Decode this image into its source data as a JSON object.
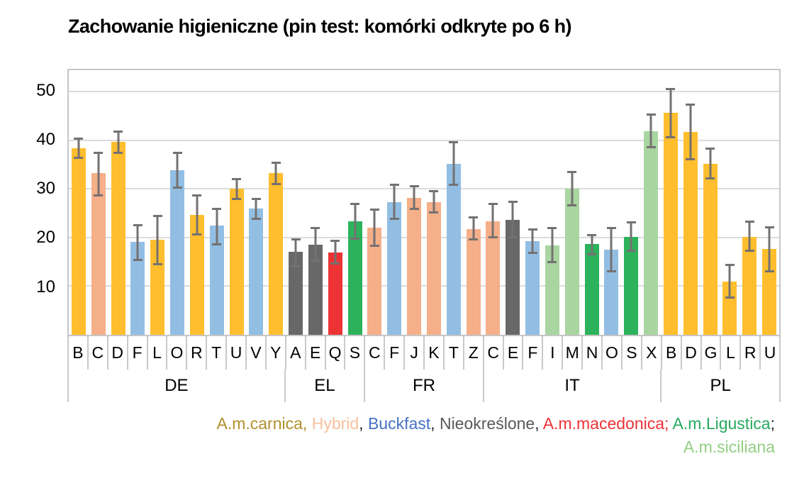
{
  "title": "Zachowanie higieniczne (pin test: komórki odkryte po 6 h)",
  "chart_data": {
    "type": "bar",
    "title": "Zachowanie higieniczne (pin test: komórki odkryte po 6 h)",
    "xlabel": "",
    "ylabel": "",
    "ylim": [
      0,
      54.4
    ],
    "yticks": [
      10,
      20,
      30,
      40,
      50
    ],
    "grid": true,
    "error_bars": true,
    "colors": {
      "A.m.carnica": "#FEBE2D",
      "Hybrid": "#F5AF89",
      "Buckfast": "#92BEE3",
      "Nieokreślone": "#686868",
      "A.m.macedonica": "#EE3335",
      "A.m.Ligustica": "#2DB25C",
      "A.m.siciliana": "#A9D5A1"
    },
    "groups": [
      {
        "label": "DE",
        "bars": [
          {
            "label": "B",
            "breed": "A.m.carnica",
            "value": 38.4,
            "err_low": 36.2,
            "err_high": 40.6
          },
          {
            "label": "C",
            "breed": "Hybrid",
            "value": 33.2,
            "err_low": 28.5,
            "err_high": 37.6
          },
          {
            "label": "D",
            "breed": "A.m.carnica",
            "value": 39.7,
            "err_low": 37.2,
            "err_high": 42.0
          },
          {
            "label": "F",
            "breed": "Buckfast",
            "value": 19.1,
            "err_low": 15.2,
            "err_high": 22.7
          },
          {
            "label": "L",
            "breed": "A.m.carnica",
            "value": 19.6,
            "err_low": 14.3,
            "err_high": 24.6
          },
          {
            "label": "O",
            "breed": "Buckfast",
            "value": 33.8,
            "err_low": 30.0,
            "err_high": 37.6
          },
          {
            "label": "R",
            "breed": "A.m.carnica",
            "value": 24.6,
            "err_low": 20.4,
            "err_high": 28.9
          },
          {
            "label": "T",
            "breed": "Buckfast",
            "value": 22.4,
            "err_low": 18.4,
            "err_high": 26.1
          },
          {
            "label": "U",
            "breed": "A.m.carnica",
            "value": 30.0,
            "err_low": 27.7,
            "err_high": 32.2
          },
          {
            "label": "V",
            "breed": "Buckfast",
            "value": 26.0,
            "err_low": 23.7,
            "err_high": 28.2
          },
          {
            "label": "Y",
            "breed": "A.m.carnica",
            "value": 33.2,
            "err_low": 30.8,
            "err_high": 35.6
          }
        ]
      },
      {
        "label": "EL",
        "bars": [
          {
            "label": "A",
            "breed": "Nieokreślone",
            "value": 17.0,
            "err_low": 13.9,
            "err_high": 19.9
          },
          {
            "label": "E",
            "breed": "Nieokreślone",
            "value": 18.5,
            "err_low": 15.0,
            "err_high": 22.1
          },
          {
            "label": "Q",
            "breed": "A.m.macedonica",
            "value": 16.9,
            "err_low": 14.4,
            "err_high": 19.6
          },
          {
            "label": "S",
            "breed": "A.m.Ligustica",
            "value": 23.4,
            "err_low": 19.6,
            "err_high": 27.2
          }
        ]
      },
      {
        "label": "FR",
        "bars": [
          {
            "label": "C",
            "breed": "Hybrid",
            "value": 22.0,
            "err_low": 18.1,
            "err_high": 26.0
          },
          {
            "label": "F",
            "breed": "Buckfast",
            "value": 27.3,
            "err_low": 23.6,
            "err_high": 31.0
          },
          {
            "label": "J",
            "breed": "Hybrid",
            "value": 28.2,
            "err_low": 25.7,
            "err_high": 30.8
          },
          {
            "label": "K",
            "breed": "Hybrid",
            "value": 27.3,
            "err_low": 24.9,
            "err_high": 29.8
          },
          {
            "label": "T",
            "breed": "Buckfast",
            "value": 35.2,
            "err_low": 30.6,
            "err_high": 39.8
          },
          {
            "label": "Z",
            "breed": "Hybrid",
            "value": 21.8,
            "err_low": 19.4,
            "err_high": 24.3
          }
        ]
      },
      {
        "label": "IT",
        "bars": [
          {
            "label": "C",
            "breed": "Hybrid",
            "value": 23.3,
            "err_low": 19.9,
            "err_high": 27.2
          },
          {
            "label": "E",
            "breed": "Nieokreślone",
            "value": 23.7,
            "err_low": 19.8,
            "err_high": 27.6
          },
          {
            "label": "F",
            "breed": "Buckfast",
            "value": 19.3,
            "err_low": 16.7,
            "err_high": 21.9
          },
          {
            "label": "I",
            "breed": "A.m.siciliana",
            "value": 18.4,
            "err_low": 14.7,
            "err_high": 22.2
          },
          {
            "label": "M",
            "breed": "A.m.siciliana",
            "value": 30.0,
            "err_low": 26.4,
            "err_high": 33.7
          },
          {
            "label": "N",
            "breed": "A.m.Ligustica",
            "value": 18.6,
            "err_low": 16.4,
            "err_high": 20.7
          },
          {
            "label": "O",
            "breed": "Buckfast",
            "value": 17.5,
            "err_low": 12.9,
            "err_high": 22.2
          },
          {
            "label": "S",
            "breed": "A.m.Ligustica",
            "value": 20.2,
            "err_low": 17.1,
            "err_high": 23.4
          },
          {
            "label": "X",
            "breed": "A.m.siciliana",
            "value": 41.9,
            "err_low": 38.4,
            "err_high": 45.5
          }
        ]
      },
      {
        "label": "PL",
        "bars": [
          {
            "label": "B",
            "breed": "A.m.carnica",
            "value": 45.6,
            "err_low": 40.4,
            "err_high": 50.7
          },
          {
            "label": "D",
            "breed": "A.m.carnica",
            "value": 41.7,
            "err_low": 35.9,
            "err_high": 47.6
          },
          {
            "label": "G",
            "breed": "A.m.carnica",
            "value": 35.2,
            "err_low": 32.0,
            "err_high": 38.5
          },
          {
            "label": "L",
            "breed": "A.m.carnica",
            "value": 11.0,
            "err_low": 7.5,
            "err_high": 14.6
          },
          {
            "label": "R",
            "breed": "A.m.carnica",
            "value": 20.2,
            "err_low": 17.0,
            "err_high": 23.5
          },
          {
            "label": "U",
            "breed": "A.m.carnica",
            "value": 17.6,
            "err_low": 12.9,
            "err_high": 22.3
          }
        ]
      }
    ]
  },
  "legend": {
    "entries": [
      {
        "label": "A.m.carnica",
        "color": "#B1902C",
        "sep": ", ",
        "sep_color": "#B1902C"
      },
      {
        "label": "Hybrid",
        "color": "#F8C09C",
        "sep": ", ",
        "sep_color": "#262626"
      },
      {
        "label": "Buckfast",
        "color": "#4472C4",
        "sep": ", ",
        "sep_color": "#262626"
      },
      {
        "label": "Nieokreślone",
        "color": "#595959",
        "sep": ", ",
        "sep_color": "#262626"
      },
      {
        "label": "A.m.macedonica",
        "color": "#ED3237",
        "sep": "; ",
        "sep_color": "#ED3237"
      },
      {
        "label": "A.m.Ligustica",
        "color": "#27A85F",
        "sep": ";",
        "sep_color": "#262626"
      }
    ],
    "line2": "A.m.siciliana",
    "line2_color": "#92CE82"
  }
}
